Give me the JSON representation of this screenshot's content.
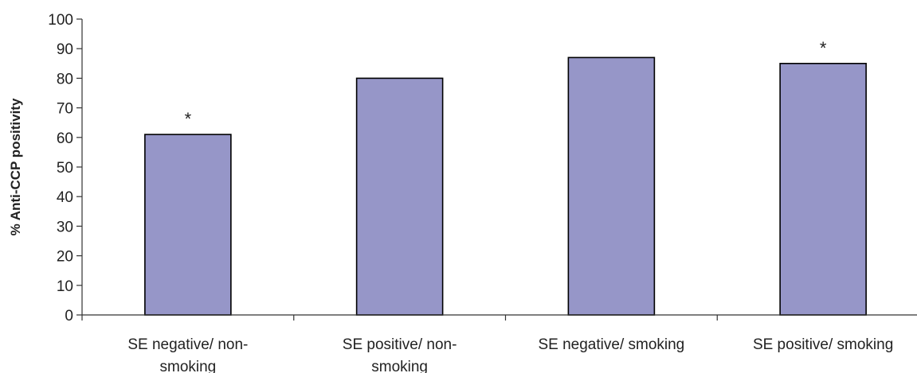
{
  "chart_data": {
    "type": "bar",
    "categories": [
      [
        "SE negative/ non-",
        "smoking"
      ],
      [
        "SE positive/ non-",
        "smoking"
      ],
      [
        "SE negative/ smoking"
      ],
      [
        "SE positive/ smoking"
      ]
    ],
    "values": [
      61,
      80,
      87,
      85
    ],
    "annotations": [
      "*",
      "",
      "",
      "*"
    ],
    "title": "",
    "xlabel": "",
    "ylabel": "% Anti-CCP positivity",
    "ylim": [
      0,
      100
    ],
    "yticks": [
      0,
      10,
      20,
      30,
      40,
      50,
      60,
      70,
      80,
      90,
      100
    ],
    "grid": false,
    "legend": "none",
    "bar_color": "#9696c8",
    "bar_edge_color": "#000000",
    "axis_color": "#333333"
  }
}
